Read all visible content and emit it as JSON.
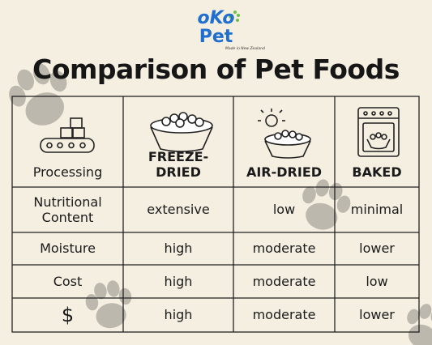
{
  "logo": {
    "brand_top": "oKo",
    "brand_bottom": "Pet",
    "tagline": "Made in New Zealand"
  },
  "title": "Comparison of Pet Foods",
  "table": {
    "header": [
      "Processing",
      "FREEZE-DRIED",
      "AIR-DRIED",
      "BAKED"
    ],
    "rows": [
      [
        "Nutritional Content",
        "extensive",
        "low",
        "minimal"
      ],
      [
        "Moisture",
        "high",
        "moderate",
        "lower"
      ],
      [
        "Cost",
        "high",
        "moderate",
        "low"
      ],
      [
        "$",
        "high",
        "moderate",
        "lower"
      ]
    ]
  }
}
